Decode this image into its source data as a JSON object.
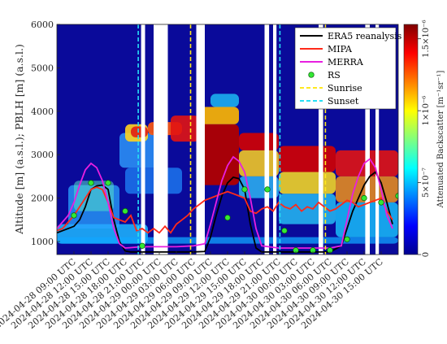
{
  "chart_data": {
    "type": "line",
    "title": "",
    "ylabel": "Altitude [m] (a.s.l.); PBLH [m] (a.s.l.)",
    "xlabel": "",
    "ylim": [
      700,
      6000
    ],
    "yticks": [
      "1000",
      "2000",
      "3000",
      "4000",
      "5000",
      "6000"
    ],
    "x_ticks": [
      "2024-04-28 09:00 UTC",
      "2024-04-28 12:00 UTC",
      "2024-04-28 15:00 UTC",
      "2024-04-28 18:00 UTC",
      "2024-04-28 21:00 UTC",
      "2024-04-29 00:00 UTC",
      "2024-04-29 03:00 UTC",
      "2024-04-29 06:00 UTC",
      "2024-04-29 09:00 UTC",
      "2024-04-29 12:00 UTC",
      "2024-04-29 15:00 UTC",
      "2024-04-29 18:00 UTC",
      "2024-04-29 21:00 UTC",
      "2024-04-30 00:00 UTC",
      "2024-04-30 03:00 UTC",
      "2024-04-30 06:00 UTC",
      "2024-04-30 09:00 UTC",
      "2024-04-30 12:00 UTC",
      "2024-04-30 15:00 UTC"
    ],
    "x_unit_note": "hours since 2024-04-28 00:00 UTC",
    "xlim_hours": [
      6,
      66
    ],
    "series": [
      {
        "name": "ERA5 reanalysis",
        "color": "#000000",
        "x": [
          6,
          9,
          10,
          11,
          12,
          13,
          14,
          15,
          16,
          17,
          18,
          19,
          20,
          21,
          22,
          24,
          27,
          30,
          32,
          33,
          34,
          35,
          36,
          37,
          38,
          39,
          40,
          41,
          42,
          43,
          44,
          45,
          48,
          51,
          54,
          56,
          57,
          58,
          59,
          60,
          61,
          62,
          63,
          64,
          65
        ],
        "y": [
          1200,
          1350,
          1500,
          1800,
          2200,
          2280,
          2300,
          2200,
          1500,
          1000,
          780,
          760,
          760,
          760,
          760,
          760,
          760,
          760,
          770,
          1100,
          1600,
          2050,
          2350,
          2480,
          2450,
          2200,
          1400,
          850,
          760,
          760,
          760,
          760,
          760,
          760,
          760,
          900,
          1300,
          1700,
          2000,
          2300,
          2500,
          2600,
          2350,
          1900,
          1400
        ]
      },
      {
        "name": "MIPA",
        "color": "#ff2a1a",
        "x": [
          6,
          7,
          8,
          9,
          10,
          11,
          12,
          13,
          14,
          15,
          16,
          17,
          18,
          19,
          20,
          21,
          22,
          23,
          24,
          25,
          26,
          27,
          28,
          29,
          30,
          31,
          32,
          33,
          34,
          35,
          36,
          37,
          38,
          39,
          40,
          41,
          42,
          43,
          44,
          45,
          46,
          47,
          48,
          49,
          50,
          51,
          52,
          53,
          54,
          55,
          56,
          57,
          58,
          59,
          60,
          61,
          62,
          63,
          64,
          65
        ],
        "y": [
          1250,
          1300,
          1450,
          1600,
          1800,
          2000,
          2200,
          2250,
          2200,
          1900,
          1550,
          1500,
          1450,
          1600,
          1250,
          1300,
          1200,
          1300,
          1200,
          1350,
          1200,
          1400,
          1500,
          1600,
          1750,
          1850,
          1950,
          2000,
          2050,
          2100,
          2150,
          2100,
          2050,
          2000,
          1700,
          1650,
          1750,
          1800,
          1700,
          1900,
          1800,
          1750,
          1850,
          1700,
          1800,
          1750,
          1900,
          1800,
          1700,
          1750,
          1850,
          1950,
          1900,
          1800,
          1850,
          1900,
          1950,
          2000,
          1700,
          1500
        ]
      },
      {
        "name": "MERRA",
        "color": "#e81fe0",
        "x": [
          6,
          8,
          9,
          10,
          11,
          12,
          13,
          14,
          15,
          16,
          17,
          18,
          19,
          20,
          22,
          24,
          27,
          30,
          32,
          33,
          34,
          35,
          36,
          37,
          38,
          39,
          40,
          41,
          42,
          45,
          48,
          51,
          54,
          56,
          57,
          58,
          59,
          60,
          61,
          62,
          63,
          64,
          65
        ],
        "y": [
          1300,
          1600,
          1900,
          2300,
          2650,
          2800,
          2700,
          2400,
          1900,
          1300,
          950,
          850,
          860,
          870,
          880,
          880,
          880,
          900,
          950,
          1400,
          1900,
          2400,
          2750,
          2950,
          2850,
          2600,
          2000,
          1300,
          900,
          850,
          850,
          850,
          850,
          900,
          1500,
          2100,
          2500,
          2800,
          2900,
          2700,
          2200,
          1600,
          1300
        ]
      }
    ],
    "rs_points": {
      "name": "RS",
      "x": [
        9,
        12,
        15,
        18,
        21,
        36,
        39,
        43,
        46,
        48,
        51,
        54,
        57,
        60,
        63,
        66
      ],
      "y": [
        1600,
        2350,
        2350,
        1700,
        900,
        1550,
        2200,
        2200,
        1250,
        800,
        800,
        800,
        1050,
        2000,
        1900,
        2050
      ]
    },
    "sunrise_hours": [
      29.5,
      53.2
    ],
    "sunset_hours": [
      20.3,
      45.2
    ],
    "legend": [
      "ERA5 reanalysis",
      "MIPA",
      "MERRA",
      "RS",
      "Sunrise",
      "Sunset"
    ],
    "legend_position": "top-right",
    "colorbar": {
      "label": "Attenuated Backscatter [m⁻¹sr⁻¹]",
      "ticks": [
        "0",
        "5×10⁻⁷",
        "1×10⁻⁶",
        "1.5×10⁻⁶"
      ]
    }
  }
}
